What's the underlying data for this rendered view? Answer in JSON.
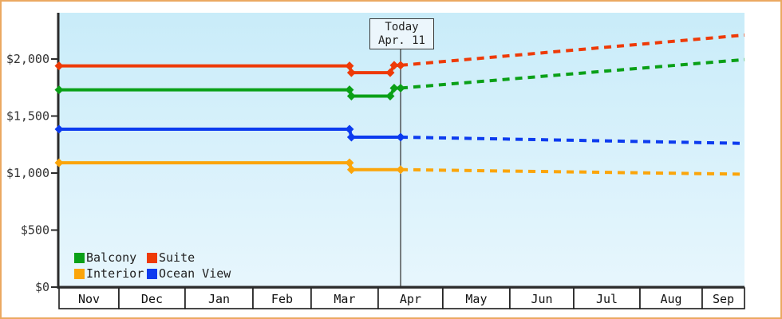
{
  "page": {
    "border_color": "#eba961",
    "background": "#ffffff"
  },
  "today_box": {
    "line1": "Today",
    "line2": "Apr. 11"
  },
  "legend": {
    "items": [
      {
        "label": "Balcony",
        "color": "#0aa017"
      },
      {
        "label": "Suite",
        "color": "#ee3a07"
      },
      {
        "label": "Interior",
        "color": "#fba50a"
      },
      {
        "label": "Ocean View",
        "color": "#0c3bef"
      }
    ]
  },
  "chart_data": {
    "type": "line",
    "title": "",
    "xlabel": "",
    "ylabel": "",
    "grid": false,
    "legend_position": "bottom-left-inside",
    "plot_bg_gradient": [
      "#c9ecf9",
      "#e7f6fd"
    ],
    "axis_color": "#2b2b2b",
    "y_axis": {
      "tick_labels": [
        "$0",
        "$500",
        "$1,000",
        "$1,500",
        "$2,000"
      ],
      "tick_values": [
        0,
        500,
        1000,
        1500,
        2000
      ],
      "ylim": [
        0,
        2400
      ]
    },
    "x_axis": {
      "months": [
        "Nov",
        "Dec",
        "Jan",
        "Feb",
        "Mar",
        "Apr",
        "May",
        "Jun",
        "Jul",
        "Aug",
        "Sep"
      ],
      "boundaries_frac": [
        0,
        0.0873,
        0.1839,
        0.2829,
        0.3678,
        0.4656,
        0.5599,
        0.6577,
        0.7509,
        0.8475,
        0.9383,
        1.0
      ]
    },
    "today": {
      "label": "Today",
      "date": "Apr. 11",
      "x_frac": 0.4983
    },
    "series": [
      {
        "name": "Suite",
        "color": "#ee3a07",
        "history": [
          [
            0,
            1940
          ],
          [
            0.4237,
            1940
          ],
          [
            0.4265,
            1880
          ],
          [
            0.4831,
            1880
          ],
          [
            0.4889,
            1945
          ],
          [
            0.4983,
            1945
          ]
        ],
        "forecast": [
          [
            0.4983,
            1945
          ],
          [
            1.0,
            2210
          ]
        ]
      },
      {
        "name": "Balcony",
        "color": "#0aa017",
        "history": [
          [
            0,
            1730
          ],
          [
            0.4237,
            1730
          ],
          [
            0.4265,
            1675
          ],
          [
            0.4831,
            1675
          ],
          [
            0.4889,
            1745
          ],
          [
            0.4983,
            1745
          ]
        ],
        "forecast": [
          [
            0.4983,
            1745
          ],
          [
            1.0,
            1995
          ]
        ]
      },
      {
        "name": "Ocean View",
        "color": "#0c3bef",
        "history": [
          [
            0,
            1385
          ],
          [
            0.4237,
            1385
          ],
          [
            0.4265,
            1315
          ],
          [
            0.4983,
            1315
          ]
        ],
        "forecast": [
          [
            0.4983,
            1315
          ],
          [
            1.0,
            1260
          ]
        ]
      },
      {
        "name": "Interior",
        "color": "#fba50a",
        "history": [
          [
            0,
            1090
          ],
          [
            0.4237,
            1090
          ],
          [
            0.4265,
            1030
          ],
          [
            0.4983,
            1030
          ]
        ],
        "forecast": [
          [
            0.4983,
            1030
          ],
          [
            1.0,
            990
          ]
        ]
      }
    ]
  }
}
